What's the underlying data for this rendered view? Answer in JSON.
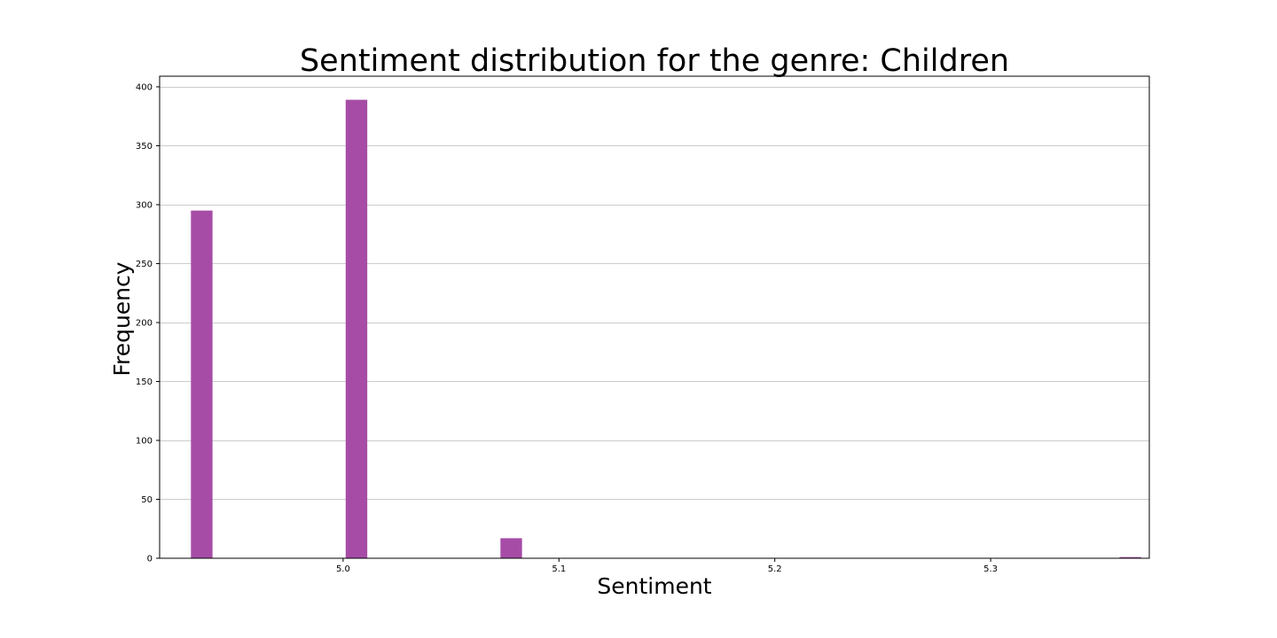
{
  "chart_data": {
    "type": "bar",
    "title": "Sentiment distribution for the genre: Children",
    "xlabel": "Sentiment",
    "ylabel": "Frequency",
    "xlim": [
      4.915,
      5.3735
    ],
    "ylim": [
      0,
      409
    ],
    "x_ticks": [
      5.0,
      5.1,
      5.2,
      5.3
    ],
    "x_tick_labels": [
      "5.0",
      "5.1",
      "5.2",
      "5.3"
    ],
    "y_ticks": [
      0,
      50,
      100,
      150,
      200,
      250,
      300,
      350,
      400
    ],
    "y_tick_labels": [
      "0",
      "50",
      "100",
      "150",
      "200",
      "250",
      "300",
      "350",
      "400"
    ],
    "grid": "horizontal",
    "bar_color": "#a64ca6",
    "bar_width": 0.01,
    "x": [
      4.9345,
      5.0062,
      5.0779,
      5.3647
    ],
    "values": [
      295,
      389,
      17,
      1
    ]
  }
}
